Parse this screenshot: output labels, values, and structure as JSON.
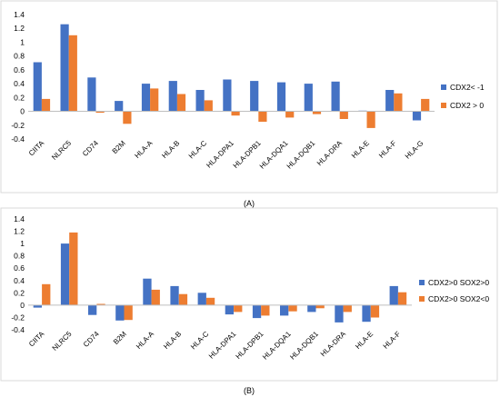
{
  "chart_data": [
    {
      "type": "bar",
      "panel_label": "(A)",
      "categories": [
        "CIITA",
        "NLRC5",
        "CD74",
        "B2M",
        "HLA-A",
        "HLA-B",
        "HLA-C",
        "HLA-DPA1",
        "HLA-DPB1",
        "HLA-DQA1",
        "HLA-DQB1",
        "HLA-DRA",
        "HLA-E",
        "HLA-F",
        "HLA-G"
      ],
      "series": [
        {
          "name": "CDX2< -1",
          "color": "#4472C4",
          "values": [
            0.71,
            1.26,
            0.49,
            0.15,
            0.4,
            0.44,
            0.31,
            0.46,
            0.44,
            0.42,
            0.4,
            0.43,
            0.01,
            0.31,
            -0.13
          ]
        },
        {
          "name": "CDX2 > 0",
          "color": "#ED7D31",
          "values": [
            0.18,
            1.1,
            -0.02,
            -0.18,
            0.33,
            0.25,
            0.16,
            -0.06,
            -0.15,
            -0.09,
            -0.04,
            -0.11,
            -0.24,
            0.26,
            0.18
          ]
        }
      ],
      "ylim": [
        -0.4,
        1.4
      ],
      "yticks": [
        "-0.4",
        "-0.2",
        "0",
        "0.2",
        "0.4",
        "0.6",
        "0.8",
        "1",
        "1.2",
        "1.4"
      ],
      "grid": false,
      "legend": "right"
    },
    {
      "type": "bar",
      "panel_label": "(B)",
      "categories": [
        "CIITA",
        "NLRC5",
        "CD74",
        "B2M",
        "HLA-A",
        "HLA-B",
        "HLA-C",
        "HLA-DPA1",
        "HLA-DPB1",
        "HLA-DQA1",
        "HLA-DQB1",
        "HLA-DRA",
        "HLA-E",
        "HLA-F"
      ],
      "series": [
        {
          "name": "CDX2>0 SOX2>0",
          "color": "#4472C4",
          "values": [
            -0.04,
            1.0,
            -0.16,
            -0.25,
            0.43,
            0.31,
            0.2,
            -0.15,
            -0.21,
            -0.17,
            -0.11,
            -0.28,
            -0.27,
            0.31
          ]
        },
        {
          "name": "CDX2>0 SOX2<0",
          "color": "#ED7D31",
          "values": [
            0.34,
            1.18,
            0.02,
            -0.24,
            0.25,
            0.18,
            0.12,
            -0.11,
            -0.17,
            -0.1,
            -0.05,
            -0.11,
            -0.2,
            0.21
          ]
        }
      ],
      "ylim": [
        -0.4,
        1.4
      ],
      "yticks": [
        "-0.4",
        "-0.2",
        "0",
        "0.2",
        "0.4",
        "0.6",
        "0.8",
        "1",
        "1.2",
        "1.4"
      ],
      "grid": false,
      "legend": "right"
    }
  ]
}
